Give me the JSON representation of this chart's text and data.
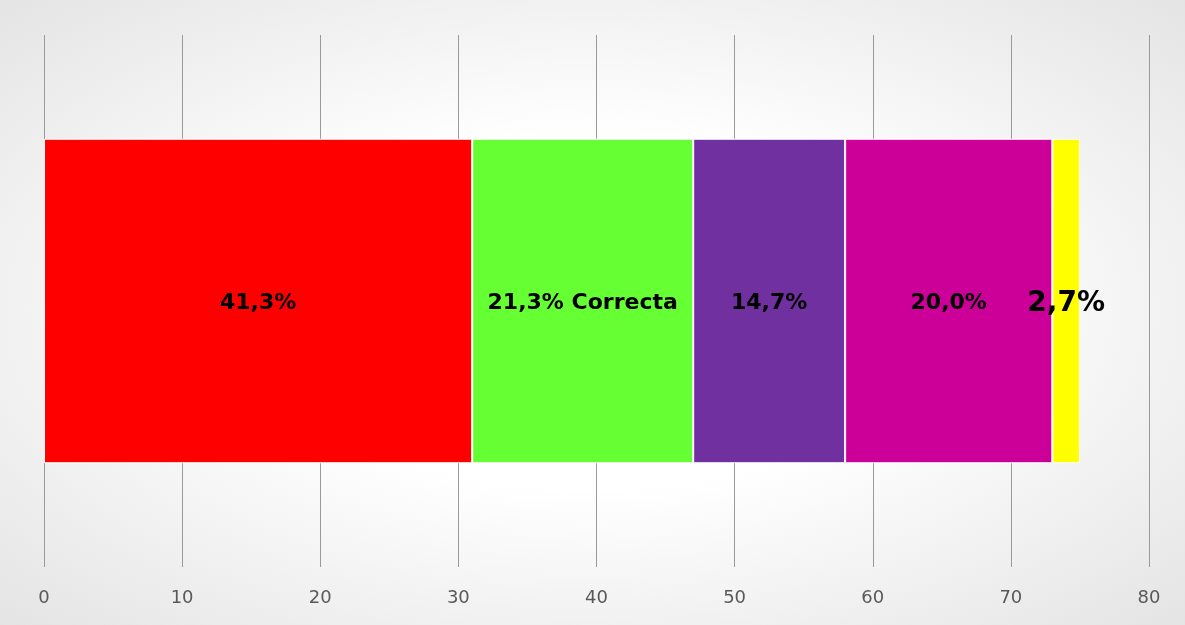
{
  "chart_data": {
    "type": "bar",
    "orientation": "horizontal",
    "stacked": true,
    "categories": [
      null
    ],
    "series": [
      {
        "color": "#ff0000",
        "values": [
          31
        ]
      },
      {
        "color": "#66ff33",
        "values": [
          16
        ]
      },
      {
        "color": "#7030a0",
        "values": [
          11
        ]
      },
      {
        "color": "#cc0099",
        "values": [
          15
        ]
      },
      {
        "color": "#ffff00",
        "values": [
          2
        ]
      }
    ],
    "annotations": [
      "41,3%",
      "21,3% Correcta",
      "14,7%",
      "20,0%",
      "2,7%"
    ],
    "xlim": [
      0,
      80
    ],
    "xticks": [
      0,
      10,
      20,
      30,
      40,
      50,
      60,
      70,
      80
    ],
    "grid": "x"
  }
}
